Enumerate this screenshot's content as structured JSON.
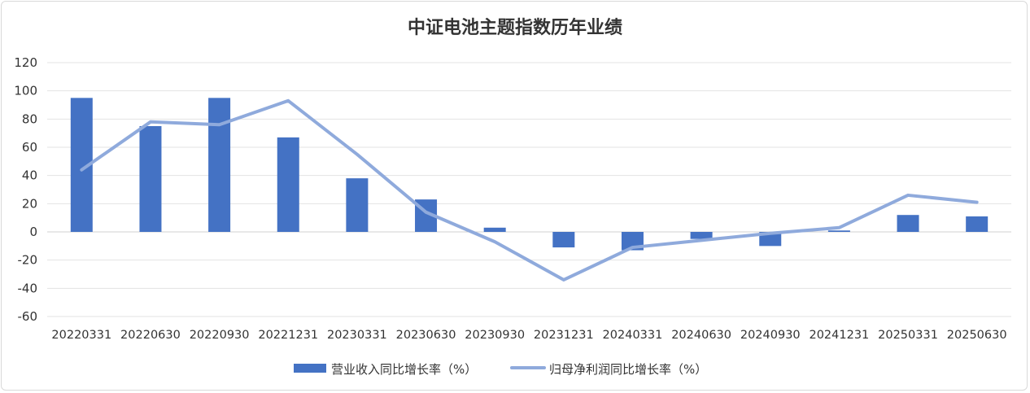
{
  "chart_data": {
    "type": "bar",
    "title": "中证电池主题指数历年业绩",
    "xlabel": "",
    "ylabel": "",
    "ylim": [
      -60,
      120
    ],
    "yticks": [
      -60,
      -40,
      -20,
      0,
      20,
      40,
      60,
      80,
      100,
      120
    ],
    "grid": true,
    "legend_position": "bottom",
    "categories": [
      "20220331",
      "20220630",
      "20220930",
      "20221231",
      "20230331",
      "20230630",
      "20230930",
      "20231231",
      "20240331",
      "20240630",
      "20240930",
      "20241231",
      "20250331",
      "20250630"
    ],
    "series": [
      {
        "name": "营业收入同比增长率（%）",
        "type": "bar",
        "color": "#4472c4",
        "values": [
          95,
          75,
          95,
          67,
          38,
          23,
          3,
          -11,
          -13,
          -5,
          -10,
          1,
          12,
          11
        ]
      },
      {
        "name": "归母净利润同比增长率（%）",
        "type": "line",
        "color": "#8faadc",
        "values": [
          44,
          78,
          76,
          93,
          55,
          14,
          -7,
          -34,
          -11,
          -6,
          -1,
          3,
          26,
          21
        ]
      }
    ]
  }
}
